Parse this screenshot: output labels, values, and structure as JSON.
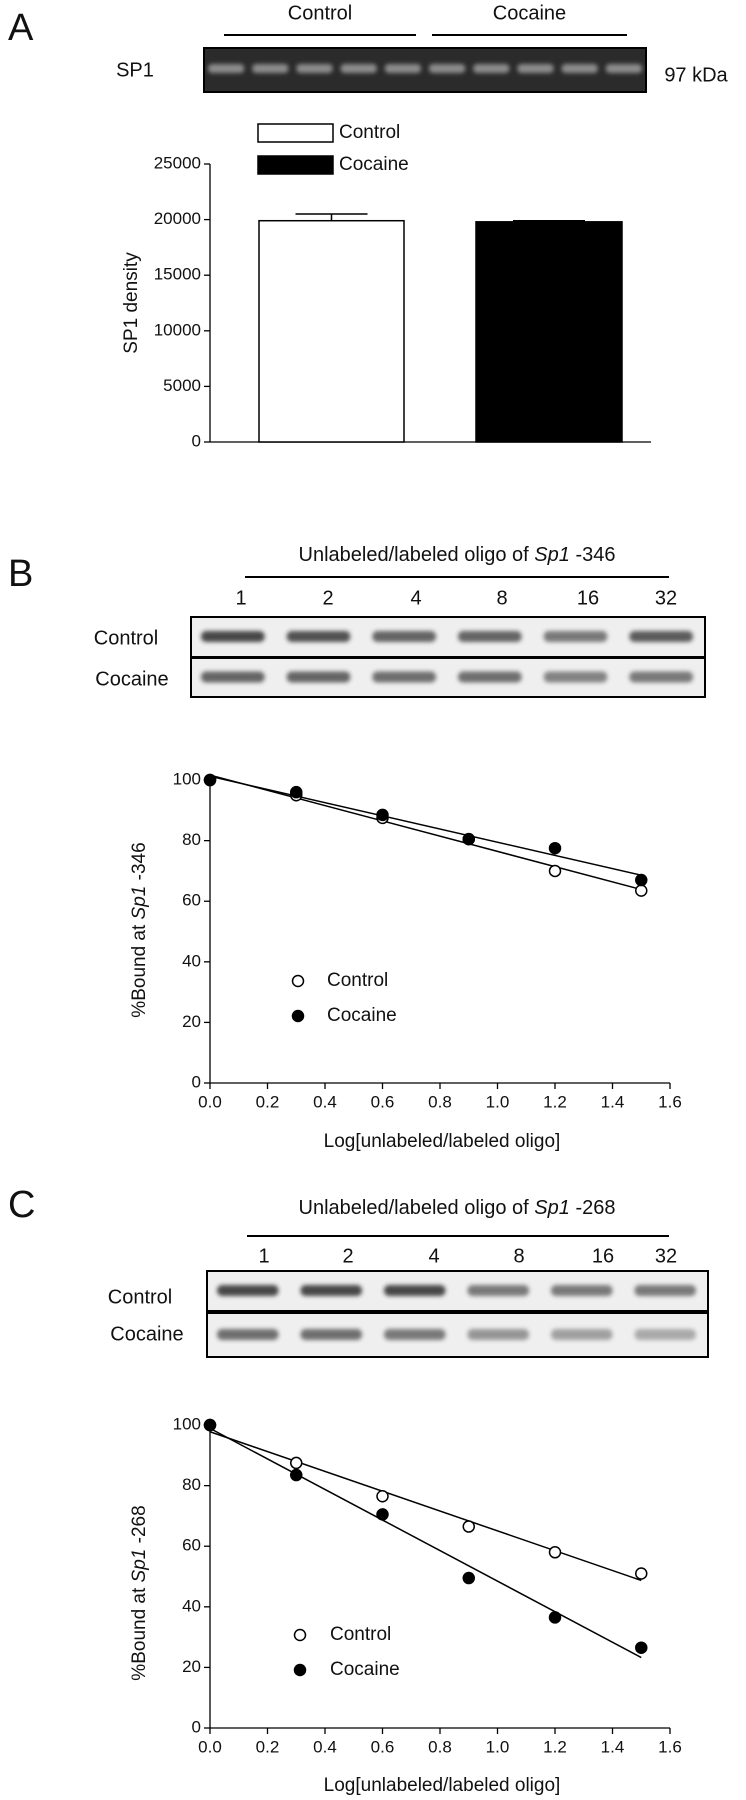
{
  "chart_data": [
    {
      "type": "bar",
      "panel": "A",
      "blot": {
        "groups": [
          "Control",
          "Cocaine"
        ],
        "protein": "SP1",
        "size": "97 kDa"
      },
      "ylabel": "SP1 density",
      "series": [
        {
          "name": "Control",
          "color": "#ffffff",
          "values": [
            19900
          ],
          "error": [
            600
          ]
        },
        {
          "name": "Cocaine",
          "color": "#000000",
          "values": [
            19800
          ],
          "error": [
            100
          ]
        }
      ],
      "ylim": [
        0,
        25000
      ],
      "yticks": [
        0,
        5000,
        10000,
        15000,
        20000,
        25000
      ]
    },
    {
      "type": "scatter",
      "panel": "B",
      "blot": {
        "title": {
          "text": "Unlabeled/labeled oligo of",
          "gene": "Sp1",
          "site": "-346"
        },
        "lanes": [
          1,
          2,
          4,
          8,
          16,
          32
        ],
        "rows": [
          "Control",
          "Cocaine"
        ]
      },
      "ylabel": {
        "text": "%Bound at",
        "gene": "Sp1",
        "site": "-346"
      },
      "xlabel": "Log[unlabeled/labeled oligo]",
      "x": [
        0,
        0.3,
        0.6,
        0.9,
        1.2,
        1.5
      ],
      "series": [
        {
          "name": "Control",
          "color": "#000000",
          "marker": "open",
          "values": [
            100,
            95,
            87.5,
            80.5,
            70,
            63.5
          ]
        },
        {
          "name": "Cocaine",
          "color": "#000000",
          "marker": "filled",
          "values": [
            100,
            96,
            88.5,
            80.5,
            77.5,
            67
          ]
        }
      ],
      "fit_lines": true,
      "xlim": [
        0,
        1.6
      ],
      "xticks": [
        {
          "value": 0,
          "label": "0.0"
        },
        0.2,
        0.4,
        0.6,
        0.8,
        {
          "value": 1,
          "label": "1.0"
        },
        1.2,
        1.4,
        1.6
      ],
      "ylim": [
        0,
        102
      ],
      "yticks": [
        0,
        20,
        40,
        60,
        80,
        100
      ]
    },
    {
      "type": "scatter",
      "panel": "C",
      "blot": {
        "title": {
          "text": "Unlabeled/labeled oligo of",
          "gene": "Sp1",
          "site": "-268"
        },
        "lanes": [
          1,
          2,
          4,
          8,
          16,
          32
        ],
        "rows": [
          "Control",
          "Cocaine"
        ]
      },
      "ylabel": {
        "text": "%Bound at",
        "gene": "Sp1",
        "site": "-268"
      },
      "xlabel": "Log[unlabeled/labeled oligo]",
      "x": [
        0,
        0.3,
        0.6,
        0.9,
        1.2,
        1.5
      ],
      "series": [
        {
          "name": "Control",
          "color": "#000000",
          "marker": "open",
          "values": [
            100,
            87.5,
            76.5,
            66.5,
            58,
            51
          ]
        },
        {
          "name": "Cocaine",
          "color": "#000000",
          "marker": "filled",
          "values": [
            100,
            83.5,
            70.5,
            49.5,
            36.5,
            26.5
          ]
        }
      ],
      "fit_lines": true,
      "xlim": [
        0,
        1.6
      ],
      "xticks": [
        {
          "value": 0,
          "label": "0.0"
        },
        0.2,
        0.4,
        0.6,
        0.8,
        {
          "value": 1,
          "label": "1.0"
        },
        1.2,
        1.4,
        1.6
      ],
      "ylim": [
        0,
        102
      ],
      "yticks": [
        0,
        20,
        40,
        60,
        80,
        100
      ]
    }
  ]
}
